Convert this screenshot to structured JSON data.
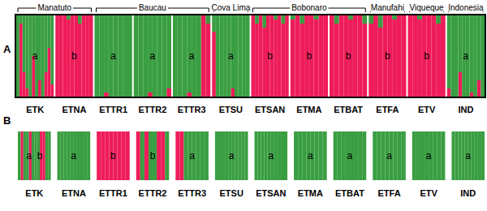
{
  "chart_data": [
    {
      "type": "bar",
      "title": "A",
      "stacked": true,
      "ylim": [
        0,
        1
      ],
      "tick_labels": false,
      "regions": [
        {
          "label": "Manatuto",
          "members": [
            "ETK",
            "ETNA"
          ]
        },
        {
          "label": "Baucau",
          "members": [
            "ETTR1",
            "ETTR2",
            "ETTR3"
          ]
        },
        {
          "label": "Cova Lima",
          "members": [
            "ETSU"
          ]
        },
        {
          "label": "Bobonaro",
          "members": [
            "ETSAN",
            "ETMA",
            "ETBAT"
          ]
        },
        {
          "label": "Manufahi",
          "members": [
            "ETFA"
          ]
        },
        {
          "label": "Viqueque",
          "members": [
            "ETV"
          ]
        },
        {
          "label": "Indonesia",
          "members": [
            "IND"
          ]
        }
      ],
      "populations": [
        {
          "label": "ETK",
          "letters": [
            "a"
          ],
          "series": [
            {
              "color": "#ee1c5a",
              "values": [
                0,
                0.9,
                0.3,
                0.1,
                0,
                0.5,
                0,
                0.2,
                0,
                0.3,
                0.6,
                0.15
              ]
            },
            {
              "color": "#3a9e42",
              "values": [
                1,
                0.1,
                0.7,
                0.9,
                1,
                0.5,
                1,
                0.8,
                1,
                0.7,
                0.4,
                0.85
              ]
            }
          ]
        },
        {
          "label": "ETNA",
          "letters": [
            "b"
          ],
          "series": [
            {
              "color": "#ee1c5a",
              "values": [
                1,
                1,
                1,
                0.95,
                1,
                1,
                0.9,
                1,
                1,
                1
              ]
            },
            {
              "color": "#3a9e42",
              "values": [
                0,
                0,
                0,
                0.05,
                0,
                0,
                0.1,
                0,
                0,
                0
              ]
            }
          ]
        },
        {
          "label": "ETTR1",
          "letters": [
            "a"
          ],
          "series": [
            {
              "color": "#ee1c5a",
              "values": [
                0,
                0,
                0.05,
                0,
                0,
                0,
                0,
                0
              ]
            },
            {
              "color": "#3a9e42",
              "values": [
                1,
                1,
                0.95,
                1,
                1,
                1,
                1,
                1
              ]
            }
          ]
        },
        {
          "label": "ETTR2",
          "letters": [
            "a"
          ],
          "series": [
            {
              "color": "#ee1c5a",
              "values": [
                0,
                0,
                0,
                0.05,
                0,
                0,
                0,
                0.1
              ]
            },
            {
              "color": "#3a9e42",
              "values": [
                1,
                1,
                1,
                0.95,
                1,
                1,
                1,
                0.9
              ]
            }
          ]
        },
        {
          "label": "ETTR3",
          "letters": [
            "a"
          ],
          "series": [
            {
              "color": "#ee1c5a",
              "values": [
                0,
                0,
                0,
                0.05,
                0,
                0,
                1,
                0.9
              ]
            },
            {
              "color": "#3a9e42",
              "values": [
                1,
                1,
                1,
                0.95,
                1,
                1,
                0,
                0.1
              ]
            }
          ]
        },
        {
          "label": "ETSU",
          "letters": [
            "a"
          ],
          "series": [
            {
              "color": "#ee1c5a",
              "values": [
                0.8,
                0,
                0,
                0,
                0,
                0.1,
                0,
                0,
                0,
                0
              ]
            },
            {
              "color": "#3a9e42",
              "values": [
                0.2,
                1,
                1,
                1,
                1,
                0.9,
                1,
                1,
                1,
                1
              ]
            }
          ]
        },
        {
          "label": "ETSAN",
          "letters": [
            "b"
          ],
          "series": [
            {
              "color": "#ee1c5a",
              "values": [
                1,
                0.9,
                1,
                0.85,
                1,
                1,
                0.95,
                1,
                0.9,
                1
              ]
            },
            {
              "color": "#3a9e42",
              "values": [
                0,
                0.1,
                0,
                0.15,
                0,
                0,
                0.05,
                0,
                0.1,
                0
              ]
            }
          ]
        },
        {
          "label": "ETMA",
          "letters": [
            "b"
          ],
          "series": [
            {
              "color": "#ee1c5a",
              "values": [
                0.95,
                1,
                0.9,
                1,
                1,
                0.95,
                1,
                1
              ]
            },
            {
              "color": "#3a9e42",
              "values": [
                0.05,
                0,
                0.1,
                0,
                0,
                0.05,
                0,
                0
              ]
            }
          ]
        },
        {
          "label": "ETBAT",
          "letters": [
            "b"
          ],
          "series": [
            {
              "color": "#ee1c5a",
              "values": [
                1,
                0.9,
                1,
                1,
                0.95,
                1,
                1,
                0.9
              ]
            },
            {
              "color": "#3a9e42",
              "values": [
                0,
                0.1,
                0,
                0,
                0.05,
                0,
                0,
                0.1
              ]
            }
          ]
        },
        {
          "label": "ETFA",
          "letters": [
            "b"
          ],
          "series": [
            {
              "color": "#ee1c5a",
              "values": [
                0.9,
                1,
                0.85,
                1,
                1,
                0.95,
                1,
                1
              ]
            },
            {
              "color": "#3a9e42",
              "values": [
                0.1,
                0,
                0.15,
                0,
                0,
                0.05,
                0,
                0
              ]
            }
          ]
        },
        {
          "label": "ETV",
          "letters": [
            "b"
          ],
          "series": [
            {
              "color": "#ee1c5a",
              "values": [
                1,
                1,
                0.95,
                1,
                1,
                1,
                0.9,
                1
              ]
            },
            {
              "color": "#3a9e42",
              "values": [
                0,
                0,
                0.05,
                0,
                0,
                0,
                0.1,
                0
              ]
            }
          ]
        },
        {
          "label": "IND",
          "letters": [
            "a"
          ],
          "series": [
            {
              "color": "#ee1c5a",
              "values": [
                0.1,
                0,
                0,
                0.3,
                0,
                0,
                0.05,
                0,
                0.2,
                0
              ]
            },
            {
              "color": "#3a9e42",
              "values": [
                0.9,
                1,
                1,
                0.7,
                1,
                1,
                0.95,
                1,
                0.8,
                1
              ]
            }
          ]
        }
      ]
    },
    {
      "type": "bar",
      "title": "B",
      "stacked": true,
      "ylim": [
        0,
        1
      ],
      "tick_labels": false,
      "populations": [
        {
          "label": "ETK",
          "letters": [
            "a",
            "b"
          ],
          "series": [
            {
              "color": "#ee1c5a",
              "values": [
                0,
                1,
                0,
                0,
                1,
                0,
                0,
                0,
                1,
                1,
                0,
                0
              ]
            },
            {
              "color": "#3a9e42",
              "values": [
                1,
                0,
                1,
                1,
                0,
                1,
                1,
                1,
                0,
                0,
                1,
                1
              ]
            }
          ]
        },
        {
          "label": "ETNA",
          "letters": [
            "a"
          ],
          "series": [
            {
              "color": "#ee1c5a",
              "values": [
                0,
                0,
                0,
                0,
                0,
                0,
                0,
                0,
                0,
                0
              ]
            },
            {
              "color": "#3a9e42",
              "values": [
                1,
                1,
                1,
                1,
                1,
                1,
                1,
                1,
                1,
                1
              ]
            }
          ]
        },
        {
          "label": "ETTR1",
          "letters": [
            "b"
          ],
          "series": [
            {
              "color": "#ee1c5a",
              "values": [
                1,
                1,
                1,
                1,
                1,
                1,
                1,
                1
              ]
            },
            {
              "color": "#3a9e42",
              "values": [
                0,
                0,
                0,
                0,
                0,
                0,
                0,
                0
              ]
            }
          ]
        },
        {
          "label": "ETTR2",
          "letters": [
            "b"
          ],
          "series": [
            {
              "color": "#ee1c5a",
              "values": [
                1,
                0,
                1,
                0,
                0,
                1,
                1,
                0
              ]
            },
            {
              "color": "#3a9e42",
              "values": [
                0,
                1,
                0,
                1,
                1,
                0,
                0,
                1
              ]
            }
          ]
        },
        {
          "label": "ETTR3",
          "letters": [
            "a"
          ],
          "series": [
            {
              "color": "#ee1c5a",
              "values": [
                1,
                1,
                0,
                0,
                0,
                0,
                0,
                0
              ]
            },
            {
              "color": "#3a9e42",
              "values": [
                0,
                0,
                1,
                1,
                1,
                1,
                1,
                1
              ]
            }
          ]
        },
        {
          "label": "ETSU",
          "letters": [
            "a"
          ],
          "series": [
            {
              "color": "#ee1c5a",
              "values": [
                0,
                0,
                0,
                0,
                0,
                0,
                0,
                0,
                0,
                0
              ]
            },
            {
              "color": "#3a9e42",
              "values": [
                1,
                1,
                1,
                1,
                1,
                1,
                1,
                1,
                1,
                1
              ]
            }
          ]
        },
        {
          "label": "ETSAN",
          "letters": [
            "a"
          ],
          "series": [
            {
              "color": "#ee1c5a",
              "values": [
                0,
                0,
                0,
                0,
                0,
                0,
                0,
                0,
                0,
                0
              ]
            },
            {
              "color": "#3a9e42",
              "values": [
                1,
                1,
                1,
                1,
                1,
                1,
                1,
                1,
                1,
                1
              ]
            }
          ]
        },
        {
          "label": "ETMA",
          "letters": [
            "a"
          ],
          "series": [
            {
              "color": "#ee1c5a",
              "values": [
                0,
                0,
                0,
                0,
                0,
                0,
                0,
                0
              ]
            },
            {
              "color": "#3a9e42",
              "values": [
                1,
                1,
                1,
                1,
                1,
                1,
                1,
                1
              ]
            }
          ]
        },
        {
          "label": "ETBAT",
          "letters": [
            "a"
          ],
          "series": [
            {
              "color": "#ee1c5a",
              "values": [
                0,
                0,
                0,
                0,
                0,
                0,
                0,
                0
              ]
            },
            {
              "color": "#3a9e42",
              "values": [
                1,
                1,
                1,
                1,
                1,
                1,
                1,
                1
              ]
            }
          ]
        },
        {
          "label": "ETFA",
          "letters": [
            "a"
          ],
          "series": [
            {
              "color": "#ee1c5a",
              "values": [
                0,
                0,
                0,
                0,
                0,
                0,
                0,
                0
              ]
            },
            {
              "color": "#3a9e42",
              "values": [
                1,
                1,
                1,
                1,
                1,
                1,
                1,
                1
              ]
            }
          ]
        },
        {
          "label": "ETV",
          "letters": [
            "a"
          ],
          "series": [
            {
              "color": "#ee1c5a",
              "values": [
                0,
                0,
                0,
                0,
                0,
                0,
                0,
                0
              ]
            },
            {
              "color": "#3a9e42",
              "values": [
                1,
                1,
                1,
                1,
                1,
                1,
                1,
                1
              ]
            }
          ]
        },
        {
          "label": "IND",
          "letters": [
            "a"
          ],
          "series": [
            {
              "color": "#ee1c5a",
              "values": [
                0,
                0,
                0,
                0,
                0,
                0,
                0,
                0,
                0,
                0
              ]
            },
            {
              "color": "#3a9e42",
              "values": [
                1,
                1,
                1,
                1,
                1,
                1,
                1,
                1,
                1,
                1
              ]
            }
          ]
        }
      ]
    }
  ]
}
